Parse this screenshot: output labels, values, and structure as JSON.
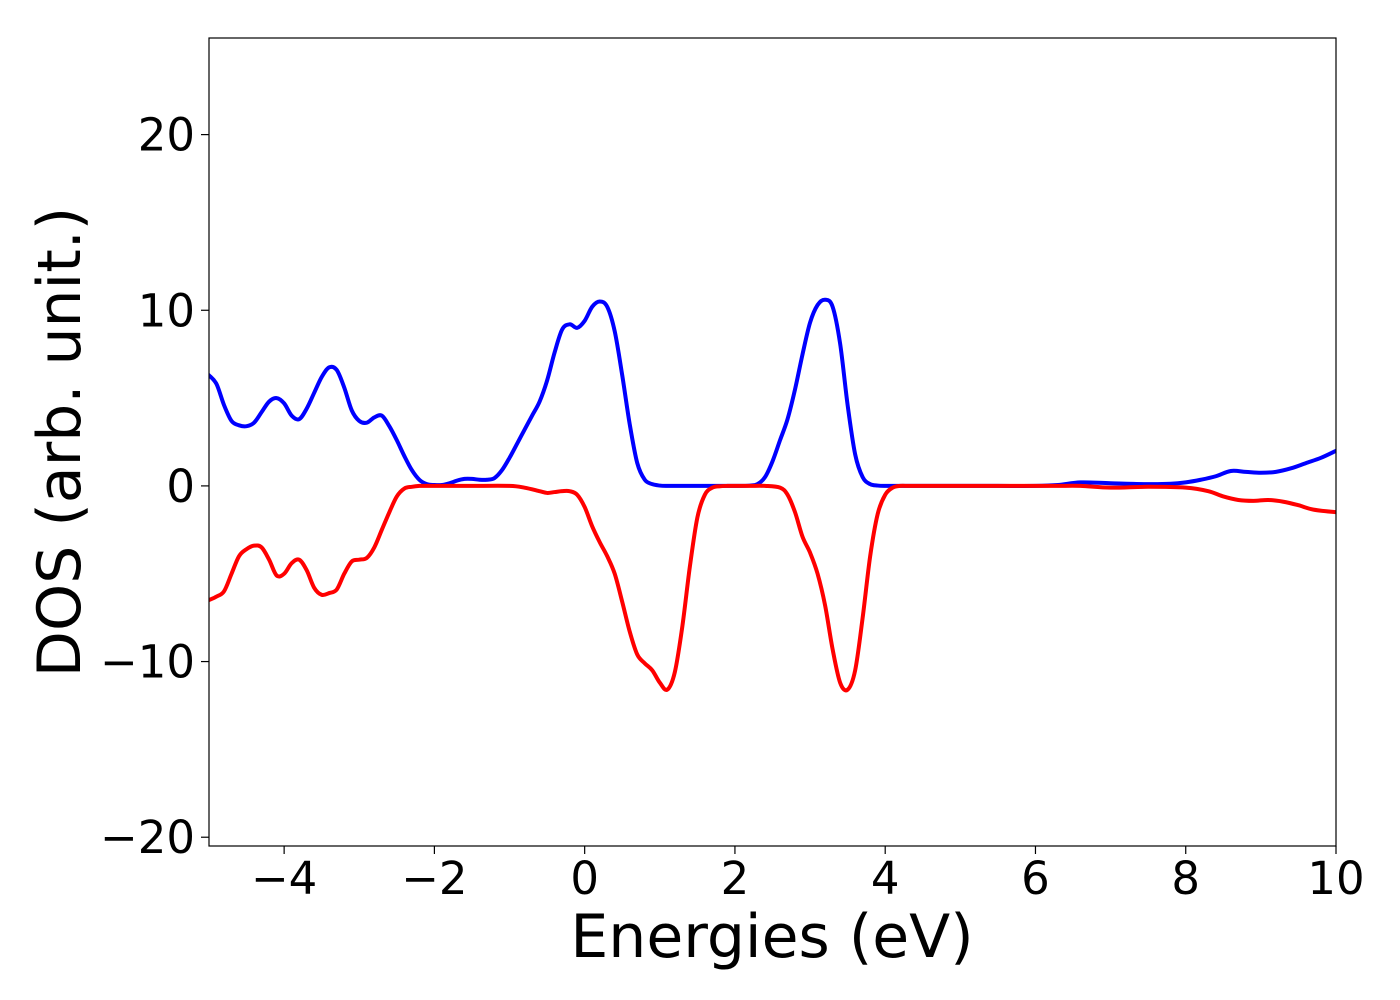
{
  "chart_data": {
    "type": "line",
    "title": "",
    "xlabel": "Energies (eV)",
    "ylabel": "DOS (arb. unit.)",
    "xlim": [
      -5,
      10
    ],
    "ylim": [
      -20.5,
      25.5
    ],
    "xticks": [
      -4,
      -2,
      0,
      2,
      4,
      6,
      8,
      10
    ],
    "xtick_labels": [
      "−4",
      "−2",
      "0",
      "2",
      "4",
      "6",
      "8",
      "10"
    ],
    "yticks": [
      -20,
      -10,
      0,
      10,
      20
    ],
    "ytick_labels": [
      "−20",
      "−10",
      "0",
      "10",
      "20"
    ],
    "grid": false,
    "series": [
      {
        "color": "#0000ff",
        "x": [
          -5.0,
          -4.9,
          -4.8,
          -4.7,
          -4.6,
          -4.5,
          -4.4,
          -4.3,
          -4.2,
          -4.1,
          -4.0,
          -3.9,
          -3.8,
          -3.7,
          -3.6,
          -3.5,
          -3.4,
          -3.3,
          -3.2,
          -3.1,
          -3.0,
          -2.9,
          -2.8,
          -2.7,
          -2.6,
          -2.5,
          -2.4,
          -2.3,
          -2.2,
          -2.1,
          -2.0,
          -1.9,
          -1.8,
          -1.7,
          -1.6,
          -1.5,
          -1.4,
          -1.3,
          -1.2,
          -1.1,
          -1.0,
          -0.9,
          -0.8,
          -0.7,
          -0.6,
          -0.5,
          -0.4,
          -0.3,
          -0.2,
          -0.1,
          0.0,
          0.1,
          0.2,
          0.3,
          0.4,
          0.5,
          0.6,
          0.7,
          0.8,
          0.9,
          1.0,
          1.1,
          1.2,
          1.4,
          1.6,
          1.8,
          2.0,
          2.2,
          2.3,
          2.4,
          2.5,
          2.6,
          2.7,
          2.8,
          2.9,
          3.0,
          3.1,
          3.2,
          3.3,
          3.4,
          3.5,
          3.6,
          3.7,
          3.8,
          3.9,
          4.0,
          4.2,
          4.5,
          5.0,
          5.5,
          6.0,
          6.3,
          6.6,
          7.0,
          7.5,
          7.8,
          8.0,
          8.2,
          8.4,
          8.6,
          8.8,
          9.0,
          9.2,
          9.4,
          9.6,
          9.8,
          10.0
        ],
        "y": [
          6.3,
          5.8,
          4.6,
          3.7,
          3.45,
          3.4,
          3.6,
          4.2,
          4.8,
          5.0,
          4.7,
          4.0,
          3.8,
          4.4,
          5.3,
          6.2,
          6.75,
          6.6,
          5.6,
          4.3,
          3.7,
          3.6,
          3.9,
          4.0,
          3.4,
          2.6,
          1.7,
          0.9,
          0.35,
          0.1,
          0.05,
          0.05,
          0.15,
          0.3,
          0.4,
          0.4,
          0.35,
          0.35,
          0.45,
          0.9,
          1.6,
          2.4,
          3.2,
          4.0,
          4.8,
          6.0,
          7.6,
          8.9,
          9.2,
          9.0,
          9.4,
          10.2,
          10.5,
          10.2,
          8.8,
          6.3,
          3.5,
          1.3,
          0.35,
          0.1,
          0.02,
          0.0,
          0.0,
          0.0,
          0.0,
          0.0,
          0.0,
          0.02,
          0.1,
          0.5,
          1.4,
          2.6,
          3.8,
          5.5,
          7.5,
          9.3,
          10.3,
          10.6,
          10.2,
          8.1,
          4.6,
          1.8,
          0.5,
          0.1,
          0.02,
          0.0,
          0.0,
          0.0,
          0.0,
          0.0,
          0.0,
          0.05,
          0.2,
          0.15,
          0.1,
          0.12,
          0.2,
          0.35,
          0.55,
          0.85,
          0.8,
          0.75,
          0.8,
          1.0,
          1.3,
          1.6,
          2.0
        ]
      },
      {
        "color": "#ff0000",
        "x": [
          -5.0,
          -4.9,
          -4.8,
          -4.7,
          -4.6,
          -4.5,
          -4.4,
          -4.3,
          -4.2,
          -4.1,
          -4.0,
          -3.9,
          -3.8,
          -3.7,
          -3.6,
          -3.5,
          -3.4,
          -3.3,
          -3.2,
          -3.1,
          -3.0,
          -2.9,
          -2.8,
          -2.7,
          -2.6,
          -2.5,
          -2.4,
          -2.3,
          -2.2,
          -2.1,
          -2.0,
          -1.9,
          -1.8,
          -1.5,
          -1.0,
          -0.8,
          -0.6,
          -0.5,
          -0.4,
          -0.3,
          -0.2,
          -0.1,
          0.0,
          0.1,
          0.2,
          0.3,
          0.4,
          0.5,
          0.6,
          0.7,
          0.8,
          0.9,
          1.0,
          1.1,
          1.2,
          1.3,
          1.4,
          1.5,
          1.6,
          1.7,
          1.8,
          1.9,
          2.0,
          2.2,
          2.4,
          2.6,
          2.7,
          2.8,
          2.9,
          3.0,
          3.1,
          3.2,
          3.3,
          3.4,
          3.5,
          3.6,
          3.7,
          3.8,
          3.9,
          4.0,
          4.1,
          4.2,
          4.3,
          4.4,
          4.5,
          5.0,
          5.5,
          6.0,
          6.3,
          6.6,
          7.0,
          7.5,
          8.0,
          8.3,
          8.5,
          8.7,
          8.9,
          9.1,
          9.3,
          9.5,
          9.7,
          10.0
        ],
        "y": [
          -6.5,
          -6.3,
          -6.0,
          -5.0,
          -4.0,
          -3.6,
          -3.4,
          -3.5,
          -4.2,
          -5.1,
          -5.0,
          -4.4,
          -4.2,
          -4.8,
          -5.8,
          -6.2,
          -6.1,
          -5.9,
          -5.0,
          -4.3,
          -4.2,
          -4.1,
          -3.5,
          -2.5,
          -1.5,
          -0.6,
          -0.15,
          -0.05,
          0.0,
          0.0,
          0.0,
          0.0,
          0.0,
          0.0,
          0.0,
          -0.1,
          -0.3,
          -0.4,
          -0.35,
          -0.3,
          -0.3,
          -0.5,
          -1.2,
          -2.3,
          -3.2,
          -4.0,
          -5.0,
          -6.6,
          -8.3,
          -9.6,
          -10.1,
          -10.5,
          -11.2,
          -11.6,
          -10.6,
          -8.0,
          -4.6,
          -1.8,
          -0.5,
          -0.1,
          -0.02,
          0.0,
          0.0,
          0.0,
          0.0,
          -0.1,
          -0.5,
          -1.5,
          -2.9,
          -3.8,
          -5.0,
          -6.8,
          -9.3,
          -11.2,
          -11.6,
          -10.5,
          -7.5,
          -4.0,
          -1.6,
          -0.5,
          -0.1,
          0.0,
          0.0,
          0.0,
          0.0,
          0.0,
          0.0,
          0.0,
          0.0,
          0.0,
          -0.1,
          -0.05,
          -0.1,
          -0.3,
          -0.6,
          -0.8,
          -0.85,
          -0.8,
          -0.9,
          -1.1,
          -1.35,
          -1.5
        ]
      }
    ]
  }
}
